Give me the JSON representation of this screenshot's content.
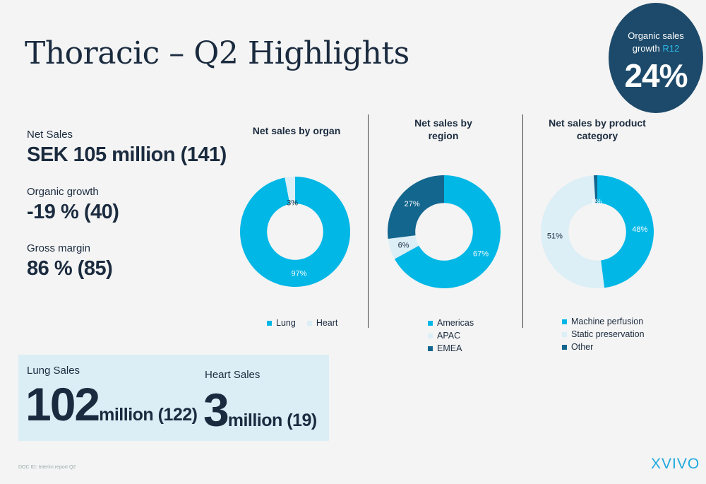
{
  "header": {
    "title": "Thoracic – Q2 Highlights"
  },
  "badge": {
    "label_line1": "Organic sales",
    "label_line2a": "growth ",
    "label_line2b": "R12",
    "value": "24%"
  },
  "kpis": [
    {
      "label": "Net Sales",
      "value": "SEK 105 million (141)"
    },
    {
      "label": "Organic growth",
      "value": "-19 % (40)"
    },
    {
      "label": "Gross margin",
      "value": "86 % (85)"
    }
  ],
  "sales_box": {
    "lung": {
      "label": "Lung Sales",
      "big": "102",
      "suffix": "million (122)"
    },
    "heart": {
      "label": "Heart Sales",
      "big": "3",
      "suffix": "million (19)"
    }
  },
  "colors": {
    "cyan": "#00b7e6",
    "light": "#dceef6",
    "dark": "#13668e",
    "navy": "#1d4a6a"
  },
  "chart_data": [
    {
      "type": "pie",
      "title": "Net sales by organ",
      "categories": [
        "Lung",
        "Heart"
      ],
      "values": [
        97,
        3
      ],
      "labels": [
        "97%",
        "3%"
      ],
      "colors": [
        "#00b7e6",
        "#dceef6"
      ],
      "legend": "bottom"
    },
    {
      "type": "pie",
      "title": "Net sales by region",
      "categories": [
        "Americas",
        "APAC",
        "EMEA"
      ],
      "values": [
        67,
        6,
        27
      ],
      "labels": [
        "67%",
        "6%",
        "27%"
      ],
      "colors": [
        "#00b7e6",
        "#dceef6",
        "#13668e"
      ],
      "legend": "bottom"
    },
    {
      "type": "pie",
      "title": "Net sales by product category",
      "categories": [
        "Machine perfusion",
        "Static preservation",
        "Other"
      ],
      "values": [
        48,
        51,
        1
      ],
      "labels": [
        "48%",
        "51%",
        "1%"
      ],
      "colors": [
        "#00b7e6",
        "#dceef6",
        "#13668e"
      ],
      "legend": "bottom"
    }
  ],
  "footer": {
    "doc": "DOC ID:   Interim report Q2",
    "logo": "XVIVO"
  }
}
